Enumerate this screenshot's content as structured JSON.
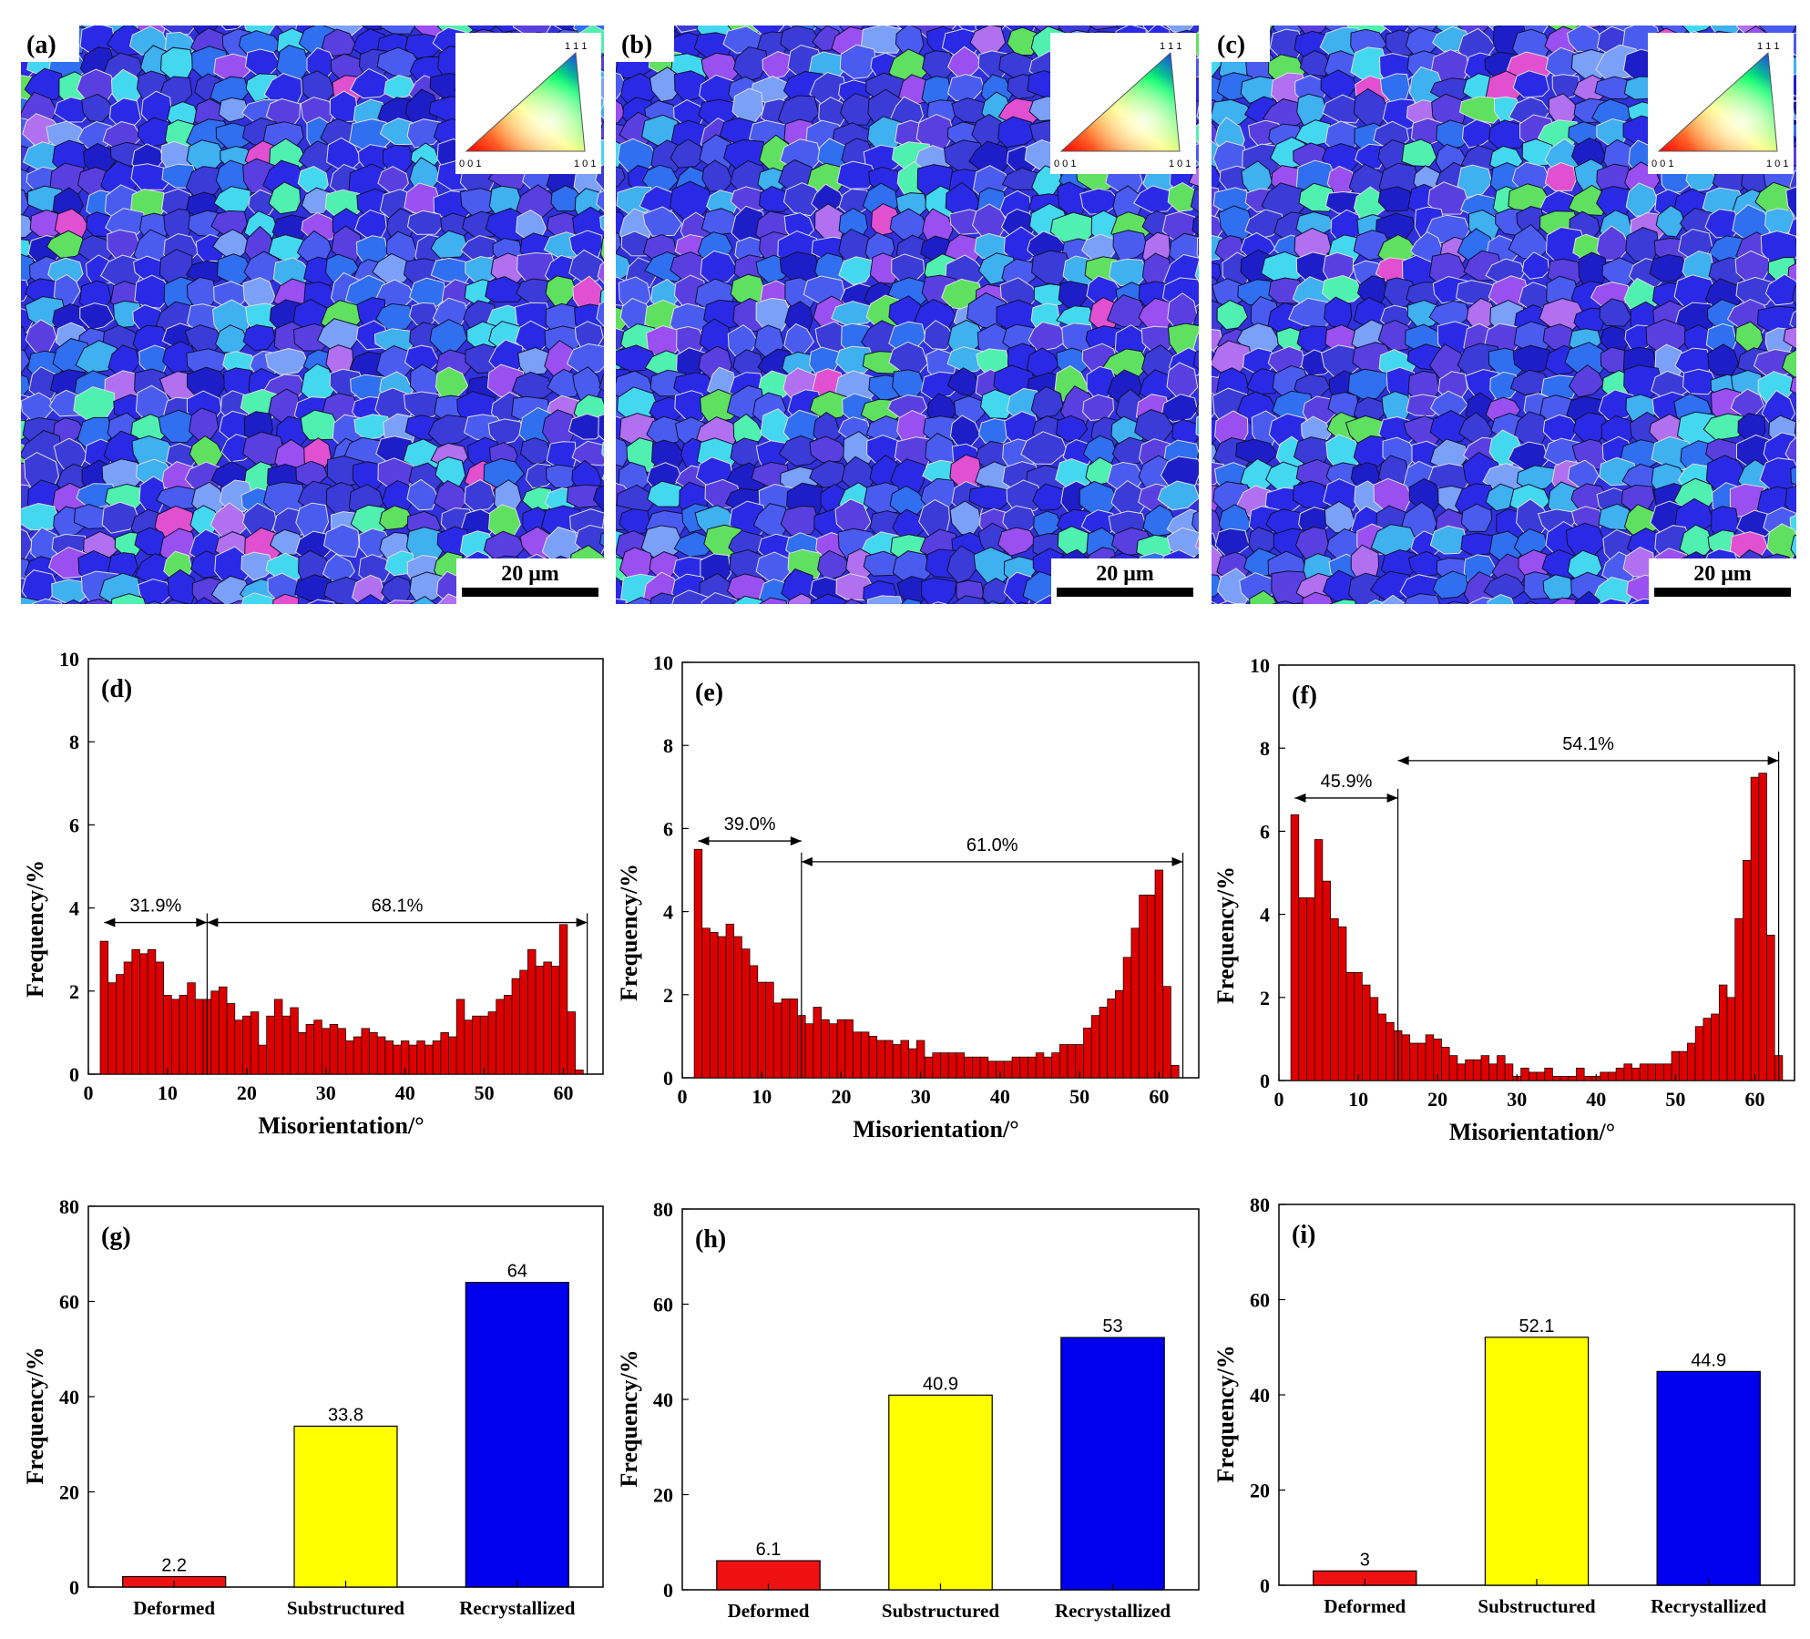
{
  "figure": {
    "ebsd_panels": [
      {
        "label": "(a)",
        "scale_bar": "20 μm",
        "legend": {
          "top": "1 1 1",
          "left": "0 0 1",
          "right": "1 0 1"
        }
      },
      {
        "label": "(b)",
        "scale_bar": "20 μm",
        "legend": {
          "top": "1 1 1",
          "left": "0 0 1",
          "right": "1 0 1"
        }
      },
      {
        "label": "(c)",
        "scale_bar": "20 μm",
        "legend": {
          "top": "1 1 1",
          "left": "0 0 1",
          "right": "1 0 1"
        }
      }
    ]
  },
  "colors": {
    "hist_bar": "#dd0000",
    "deformed": "#ee1111",
    "substructured": "#ffff00",
    "recrystallized": "#0000ee",
    "ebsd_base": "#3030dd",
    "grain_palette": [
      "#2a2ae6",
      "#3b3bd8",
      "#4a5cf0",
      "#5a3fe0",
      "#1e1ec8",
      "#3fb0f0",
      "#44d8f0",
      "#60e060",
      "#9a4ff0",
      "#e050d0",
      "#7aa0f8",
      "#2f6ff0",
      "#b070f0",
      "#50f0b0"
    ]
  },
  "chart_data": [
    {
      "type": "bar",
      "panel": "(d)",
      "xlabel": "Misorientation/°",
      "ylabel": "Frequency/%",
      "xlim": [
        0,
        65
      ],
      "ylim": [
        0,
        10
      ],
      "xticks": [
        0,
        10,
        20,
        30,
        40,
        50,
        60
      ],
      "yticks": [
        0,
        2,
        4,
        6,
        8,
        10
      ],
      "bin_start": 2,
      "bin_width": 1,
      "values": [
        3.2,
        2.2,
        2.4,
        2.7,
        3.0,
        2.9,
        3.0,
        2.7,
        1.9,
        1.8,
        1.9,
        2.2,
        1.8,
        1.8,
        2.0,
        2.1,
        1.7,
        1.3,
        1.4,
        1.5,
        0.7,
        1.4,
        1.8,
        1.4,
        1.6,
        1.0,
        1.2,
        1.3,
        1.1,
        1.2,
        1.1,
        0.8,
        0.9,
        1.1,
        1.0,
        0.9,
        0.8,
        0.7,
        0.8,
        0.7,
        0.8,
        0.7,
        0.8,
        1.0,
        0.9,
        1.8,
        1.3,
        1.4,
        1.4,
        1.5,
        1.8,
        1.9,
        2.3,
        2.5,
        3.0,
        2.6,
        2.7,
        2.6,
        3.6,
        1.5,
        0.1
      ],
      "annotations": [
        {
          "text": "31.9%",
          "from": 2,
          "to": 15,
          "y": 3.65
        },
        {
          "text": "68.1%",
          "from": 15,
          "to": 63,
          "y": 3.65
        }
      ],
      "vlines": [
        15,
        63
      ]
    },
    {
      "type": "bar",
      "panel": "(e)",
      "xlabel": "Misorientation/°",
      "ylabel": "Frequency/%",
      "xlim": [
        0,
        65
      ],
      "ylim": [
        0,
        10
      ],
      "xticks": [
        0,
        10,
        20,
        30,
        40,
        50,
        60
      ],
      "yticks": [
        0,
        2,
        4,
        6,
        8,
        10
      ],
      "bin_start": 2,
      "bin_width": 1,
      "values": [
        5.5,
        3.6,
        3.5,
        3.4,
        3.7,
        3.4,
        3.1,
        2.7,
        2.3,
        2.3,
        1.8,
        1.9,
        1.9,
        1.5,
        1.3,
        1.7,
        1.4,
        1.3,
        1.4,
        1.4,
        1.1,
        1.1,
        1.0,
        0.9,
        0.9,
        0.8,
        0.9,
        0.7,
        0.9,
        0.5,
        0.6,
        0.6,
        0.6,
        0.6,
        0.5,
        0.5,
        0.5,
        0.4,
        0.4,
        0.4,
        0.5,
        0.5,
        0.5,
        0.6,
        0.5,
        0.6,
        0.8,
        0.8,
        0.8,
        1.2,
        1.5,
        1.7,
        1.9,
        2.1,
        2.9,
        3.6,
        4.4,
        4.4,
        5.0,
        2.2,
        0.3
      ],
      "annotations": [
        {
          "text": "39.0%",
          "from": 2,
          "to": 15,
          "y": 5.7
        },
        {
          "text": "61.0%",
          "from": 15,
          "to": 63,
          "y": 5.2
        }
      ],
      "vlines": [
        15,
        63
      ]
    },
    {
      "type": "bar",
      "panel": "(f)",
      "xlabel": "Misorientation/°",
      "ylabel": "Frequency/%",
      "xlim": [
        0,
        65
      ],
      "ylim": [
        0,
        10
      ],
      "xticks": [
        0,
        10,
        20,
        30,
        40,
        50,
        60
      ],
      "yticks": [
        0,
        2,
        4,
        6,
        8,
        10
      ],
      "bin_start": 2,
      "bin_width": 1,
      "values": [
        6.4,
        4.4,
        4.4,
        5.8,
        4.8,
        3.9,
        3.7,
        2.6,
        2.6,
        2.3,
        2.0,
        1.6,
        1.4,
        1.2,
        1.1,
        0.9,
        0.9,
        1.1,
        1.0,
        0.8,
        0.6,
        0.4,
        0.5,
        0.5,
        0.6,
        0.4,
        0.6,
        0.4,
        0.1,
        0.3,
        0.2,
        0.2,
        0.3,
        0.1,
        0.1,
        0.1,
        0.3,
        0.1,
        0.1,
        0.2,
        0.2,
        0.3,
        0.4,
        0.3,
        0.4,
        0.4,
        0.4,
        0.4,
        0.7,
        0.7,
        0.9,
        1.3,
        1.5,
        1.6,
        2.3,
        2.0,
        3.9,
        5.3,
        7.3,
        7.4,
        3.5,
        0.6
      ],
      "annotations": [
        {
          "text": "45.9%",
          "from": 2,
          "to": 15,
          "y": 6.8
        },
        {
          "text": "54.1%",
          "from": 15,
          "to": 63,
          "y": 7.7
        }
      ],
      "vlines": [
        15,
        63
      ]
    },
    {
      "type": "bar",
      "panel": "(g)",
      "xlabel": "",
      "ylabel": "Frequency/%",
      "ylim": [
        0,
        80
      ],
      "yticks": [
        0,
        20,
        40,
        60,
        80
      ],
      "categories": [
        "Deformed",
        "Substructured",
        "Recrystallized"
      ],
      "values": [
        2.2,
        33.8,
        64
      ],
      "data_labels": [
        "2.2",
        "33.8",
        "64"
      ]
    },
    {
      "type": "bar",
      "panel": "(h)",
      "xlabel": "",
      "ylabel": "Frequency/%",
      "ylim": [
        0,
        80
      ],
      "yticks": [
        0,
        20,
        40,
        60,
        80
      ],
      "categories": [
        "Deformed",
        "Substructured",
        "Recrystallized"
      ],
      "values": [
        6.1,
        40.9,
        53
      ],
      "data_labels": [
        "6.1",
        "40.9",
        "53"
      ]
    },
    {
      "type": "bar",
      "panel": "(i)",
      "xlabel": "",
      "ylabel": "Frequency/%",
      "ylim": [
        0,
        80
      ],
      "yticks": [
        0,
        20,
        40,
        60,
        80
      ],
      "categories": [
        "Deformed",
        "Substructured",
        "Recrystallized"
      ],
      "values": [
        3,
        52.1,
        44.9
      ],
      "data_labels": [
        "3",
        "52.1",
        "44.9"
      ]
    }
  ]
}
